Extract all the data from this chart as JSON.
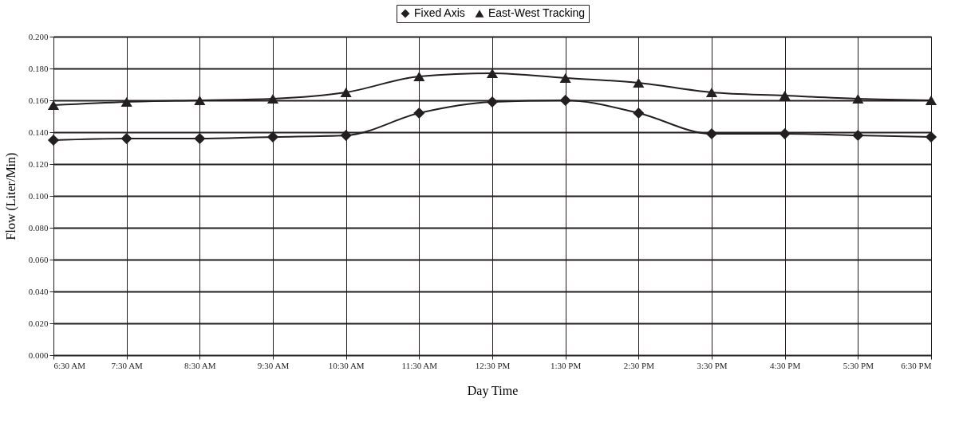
{
  "chart_data": {
    "type": "line",
    "xlabel": "Day Time",
    "ylabel": "Flow (Liter/Min)",
    "categories": [
      "6:30 AM",
      "7:30 AM",
      "8:30 AM",
      "9:30 AM",
      "10:30 AM",
      "11:30 AM",
      "12:30 PM",
      "1:30 PM",
      "2:30 PM",
      "3:30 PM",
      "4:30 PM",
      "5:30 PM",
      "6:30 PM"
    ],
    "series": [
      {
        "name": "Fixed Axis",
        "color": "#231f20",
        "marker": "diamond",
        "values": [
          0.135,
          0.136,
          0.136,
          0.137,
          0.138,
          0.152,
          0.159,
          0.16,
          0.152,
          0.139,
          0.139,
          0.138,
          0.137
        ]
      },
      {
        "name": "East-West Tracking",
        "color": "#231f20",
        "marker": "triangle",
        "values": [
          0.157,
          0.159,
          0.16,
          0.161,
          0.165,
          0.175,
          0.177,
          0.174,
          0.171,
          0.165,
          0.163,
          0.161,
          0.16
        ]
      }
    ],
    "ylim": [
      0,
      0.2
    ],
    "yticks": [
      {
        "value": 0,
        "label": "0.000"
      },
      {
        "value": 0.02,
        "label": "0.020"
      },
      {
        "value": 0.04,
        "label": "0.040"
      },
      {
        "value": 0.06,
        "label": "0.060"
      },
      {
        "value": 0.08,
        "label": "0.080"
      },
      {
        "value": 0.1,
        "label": "0.100"
      },
      {
        "value": 0.12,
        "label": "0.120"
      },
      {
        "value": 0.14,
        "label": "0.140"
      },
      {
        "value": 0.16,
        "label": "0.160"
      },
      {
        "value": 0.18,
        "label": "0.180"
      },
      {
        "value": 0.2,
        "label": "0.200"
      }
    ],
    "grid": true,
    "legend": "top"
  }
}
